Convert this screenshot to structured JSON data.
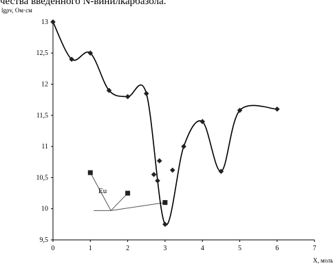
{
  "top_caption": "чества введенного N-винилкарбазола.",
  "chart_data": {
    "type": "scatter",
    "xlabel": "X, моль",
    "ylabel": "lgρv, Ом·см",
    "xlim": [
      0,
      7
    ],
    "ylim": [
      9.5,
      13
    ],
    "x_ticks": [
      "0",
      "1",
      "2",
      "3",
      "4",
      "5",
      "6",
      "7"
    ],
    "y_ticks": [
      "9,5",
      "10",
      "10,5",
      "11",
      "11,5",
      "12",
      "12,5",
      "13"
    ],
    "grid": false,
    "series": [
      {
        "marker": "diamond",
        "smooth_line": true,
        "points": [
          [
            0,
            13.0
          ],
          [
            0.5,
            12.4
          ],
          [
            1.0,
            12.5
          ],
          [
            1.5,
            11.9
          ],
          [
            2.0,
            11.8
          ],
          [
            2.5,
            11.85
          ],
          [
            3.0,
            9.75
          ],
          [
            3.5,
            11.0
          ],
          [
            4.0,
            11.4
          ],
          [
            4.5,
            10.6
          ],
          [
            5.0,
            11.58
          ],
          [
            6.0,
            11.6
          ]
        ]
      },
      {
        "marker": "diamond",
        "smooth_line": false,
        "points": [
          [
            2.7,
            10.55
          ],
          [
            2.8,
            10.45
          ],
          [
            2.85,
            10.77
          ],
          [
            3.2,
            10.62
          ]
        ]
      },
      {
        "name": "Eu",
        "marker": "square",
        "smooth_line": false,
        "points": [
          [
            1.0,
            10.58
          ],
          [
            2.0,
            10.25
          ],
          [
            3.0,
            10.1
          ]
        ]
      }
    ],
    "annotations": [
      {
        "text": "Eu",
        "anchor": [
          1.55,
          9.97
        ]
      }
    ]
  },
  "colors": {
    "line": "#000000",
    "marker": "#222222",
    "annotation_line": "#555555"
  }
}
